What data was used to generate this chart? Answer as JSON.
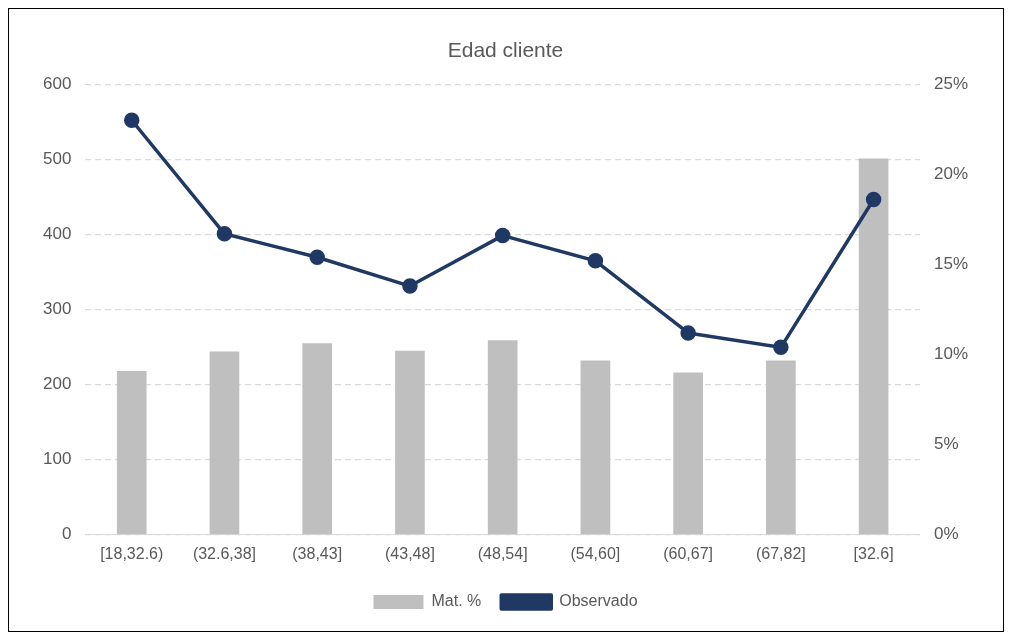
{
  "chart_data": {
    "type": "bar",
    "title": "Edad cliente",
    "categories": [
      "[18,32.6)",
      "(32.6,38]",
      "(38,43]",
      "(43,48]",
      "(48,54]",
      "(54,60]",
      "(60,67]",
      "(67,82]",
      "[32.6]"
    ],
    "series": [
      {
        "name": "Mat. %",
        "color": "#bfbfbf",
        "values": [
          218,
          244,
          255,
          245,
          259,
          232,
          216,
          232,
          501
        ]
      },
      {
        "name": "Observado",
        "type": "line",
        "axis": "y2",
        "color": "#203864",
        "values": [
          23.0,
          16.7,
          15.4,
          13.8,
          16.6,
          15.2,
          11.2,
          10.4,
          18.6
        ]
      }
    ],
    "ylim": [
      0,
      600
    ],
    "yticks": [
      0,
      100,
      200,
      300,
      400,
      500,
      600
    ],
    "y2lim": [
      0,
      25
    ],
    "y2ticks": [
      {
        "value": 0,
        "label": "0%"
      },
      {
        "value": 5,
        "label": "5%"
      },
      {
        "value": 10,
        "label": "10%"
      },
      {
        "value": 15,
        "label": "15%"
      },
      {
        "value": 20,
        "label": "20%"
      },
      {
        "value": 25,
        "label": "25%"
      }
    ],
    "grid": "y",
    "legend": "bottom",
    "marker": "circle",
    "line_style": "solid"
  }
}
